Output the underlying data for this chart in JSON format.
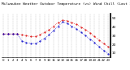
{
  "title": "Milwaukee Weather Outdoor Temperature (vs) Wind Chill (Last 24 Hours)",
  "temp_color": "#dd0000",
  "windchill_color": "#0000cc",
  "background_color": "#ffffff",
  "plot_bg_color": "#ffffff",
  "grid_color": "#888888",
  "hours": [
    0,
    1,
    2,
    3,
    4,
    5,
    6,
    7,
    8,
    9,
    10,
    11,
    12,
    13,
    14,
    15,
    16,
    17,
    18,
    19,
    20,
    21,
    22,
    23
  ],
  "temperature": [
    32,
    32,
    32,
    32,
    31,
    30,
    29,
    29,
    31,
    34,
    37,
    41,
    45,
    48,
    47,
    45,
    43,
    40,
    37,
    33,
    29,
    25,
    21,
    17
  ],
  "windchill": [
    32,
    32,
    32,
    32,
    24,
    22,
    21,
    21,
    24,
    27,
    31,
    36,
    41,
    46,
    44,
    41,
    38,
    34,
    30,
    26,
    22,
    17,
    13,
    9
  ],
  "ylim": [
    5,
    55
  ],
  "ytick_values": [
    10,
    20,
    30,
    40,
    50
  ],
  "ytick_labels": [
    "10",
    "20",
    "30",
    "40",
    "50"
  ],
  "ylabel_fontsize": 3.0,
  "xlabel_fontsize": 2.8,
  "title_fontsize": 3.2,
  "marker_size": 1.0,
  "line_width": 0.5
}
